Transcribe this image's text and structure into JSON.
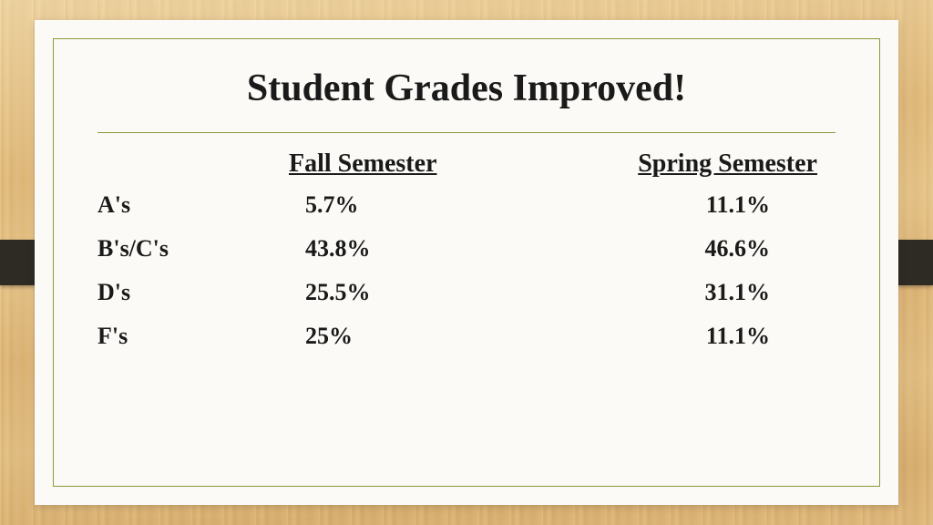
{
  "title": "Student Grades Improved!",
  "table": {
    "columns": [
      "Fall Semester",
      "Spring Semester"
    ],
    "rows": [
      {
        "label": "A's",
        "fall": "5.7%",
        "spring": "11.1%"
      },
      {
        "label": "B's/C's",
        "fall": "43.8%",
        "spring": "46.6%"
      },
      {
        "label": "D's",
        "fall": "25.5%",
        "spring": "31.1%"
      },
      {
        "label": "F's",
        "fall": "25%",
        "spring": "11.1%"
      }
    ]
  },
  "colors": {
    "border": "#8a9a3a",
    "card_bg": "#fbfaf6",
    "text": "#1a1a1a",
    "tab": "#2e2a24"
  },
  "typography": {
    "title_fontsize": 42,
    "header_fontsize": 28,
    "cell_fontsize": 26,
    "font_family": "Garamond"
  }
}
